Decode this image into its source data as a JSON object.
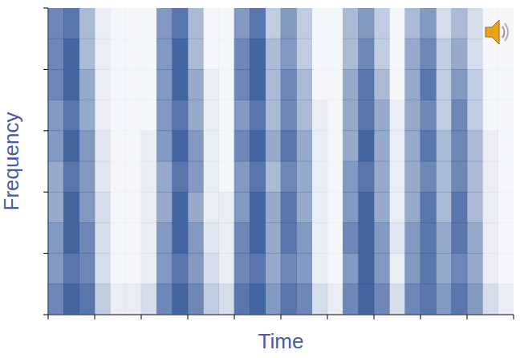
{
  "chart_data": {
    "type": "heatmap",
    "xlabel": "Time",
    "ylabel": "Frequency",
    "tick_labels": false,
    "color": "#2f5597",
    "xlim": [
      0,
      30
    ],
    "ylim": [
      0,
      10
    ],
    "xticks": [
      0,
      3,
      6,
      9,
      12,
      15,
      18,
      21,
      24,
      27,
      30
    ],
    "yticks": [
      0,
      2,
      4,
      6,
      8,
      10
    ],
    "cells": [
      [
        0.7,
        0.9,
        0.8,
        0.3,
        0.1,
        0.1,
        0.2,
        0.7,
        0.9,
        0.7,
        0.3,
        0.2,
        0.8,
        0.9,
        0.6,
        0.8,
        0.7,
        0.2,
        0.1,
        0.7,
        0.9,
        0.7,
        0.2,
        0.7,
        0.8,
        0.6,
        0.8,
        0.6,
        0.2,
        0.1
      ],
      [
        0.6,
        0.8,
        0.7,
        0.2,
        0.05,
        0.05,
        0.1,
        0.6,
        0.8,
        0.6,
        0.2,
        0.1,
        0.7,
        0.8,
        0.5,
        0.7,
        0.6,
        0.1,
        0.05,
        0.6,
        0.9,
        0.6,
        0.1,
        0.6,
        0.8,
        0.5,
        0.7,
        0.5,
        0.1,
        0.05
      ],
      [
        0.6,
        0.9,
        0.7,
        0.2,
        0.05,
        0.05,
        0.1,
        0.6,
        0.9,
        0.6,
        0.15,
        0.1,
        0.7,
        0.9,
        0.5,
        0.8,
        0.6,
        0.1,
        0.05,
        0.7,
        0.9,
        0.6,
        0.15,
        0.6,
        0.8,
        0.5,
        0.8,
        0.5,
        0.1,
        0.05
      ],
      [
        0.5,
        0.9,
        0.6,
        0.2,
        0.05,
        0.05,
        0.1,
        0.5,
        0.9,
        0.5,
        0.1,
        0.1,
        0.6,
        0.9,
        0.5,
        0.8,
        0.5,
        0.1,
        0.05,
        0.6,
        0.9,
        0.5,
        0.1,
        0.5,
        0.8,
        0.4,
        0.8,
        0.4,
        0.1,
        0.05
      ],
      [
        0.5,
        0.8,
        0.6,
        0.15,
        0.05,
        0.05,
        0.1,
        0.5,
        0.8,
        0.6,
        0.1,
        0.05,
        0.6,
        0.8,
        0.4,
        0.7,
        0.5,
        0.1,
        0.05,
        0.6,
        0.8,
        0.5,
        0.1,
        0.5,
        0.7,
        0.4,
        0.7,
        0.4,
        0.1,
        0.05
      ],
      [
        0.6,
        0.9,
        0.6,
        0.15,
        0.05,
        0.05,
        0.1,
        0.6,
        0.9,
        0.6,
        0.1,
        0.05,
        0.7,
        0.9,
        0.5,
        0.8,
        0.5,
        0.1,
        0.05,
        0.5,
        0.9,
        0.5,
        0.1,
        0.5,
        0.8,
        0.4,
        0.7,
        0.4,
        0.1,
        0.05
      ],
      [
        0.6,
        0.8,
        0.5,
        0.1,
        0.05,
        0.05,
        0.05,
        0.6,
        0.8,
        0.5,
        0.1,
        0.05,
        0.6,
        0.8,
        0.4,
        0.7,
        0.4,
        0.1,
        0.05,
        0.5,
        0.8,
        0.5,
        0.1,
        0.5,
        0.7,
        0.3,
        0.7,
        0.3,
        0.05,
        0.05
      ],
      [
        0.7,
        0.9,
        0.5,
        0.1,
        0.05,
        0.05,
        0.05,
        0.6,
        0.9,
        0.5,
        0.1,
        0.05,
        0.7,
        0.9,
        0.4,
        0.7,
        0.4,
        0.05,
        0.05,
        0.5,
        0.8,
        0.4,
        0.05,
        0.5,
        0.8,
        0.3,
        0.6,
        0.3,
        0.05,
        0.05
      ],
      [
        0.7,
        0.9,
        0.4,
        0.1,
        0.05,
        0.05,
        0.05,
        0.6,
        0.9,
        0.4,
        0.05,
        0.05,
        0.7,
        0.9,
        0.4,
        0.6,
        0.3,
        0.05,
        0.05,
        0.4,
        0.7,
        0.3,
        0.05,
        0.5,
        0.7,
        0.3,
        0.5,
        0.2,
        0.05,
        0.05
      ],
      [
        0.7,
        0.8,
        0.4,
        0.1,
        0.05,
        0.05,
        0.05,
        0.6,
        0.8,
        0.4,
        0.05,
        0.05,
        0.6,
        0.8,
        0.3,
        0.6,
        0.3,
        0.05,
        0.05,
        0.4,
        0.6,
        0.3,
        0.05,
        0.4,
        0.6,
        0.2,
        0.4,
        0.2,
        0.05,
        0.05
      ]
    ]
  }
}
